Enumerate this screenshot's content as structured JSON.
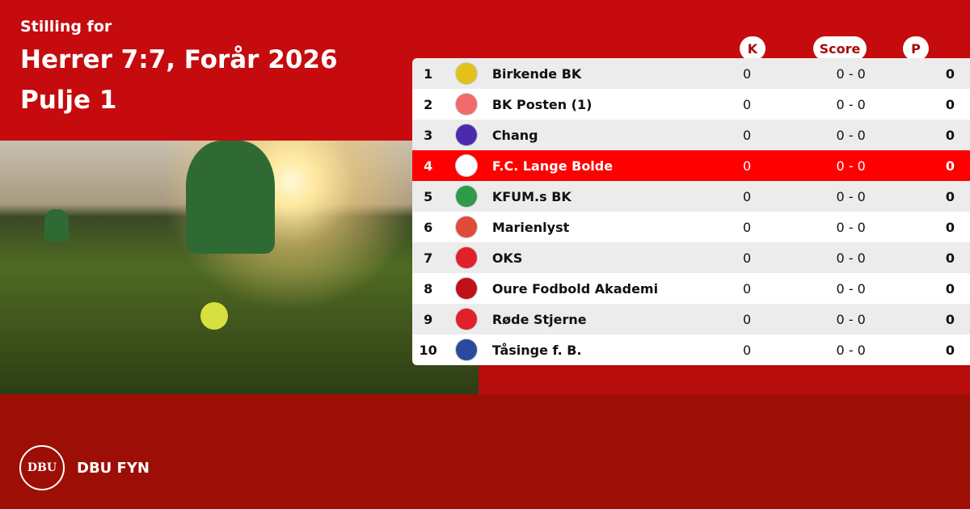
{
  "header": {
    "subtitle": "Stilling for",
    "title": "Herrer 7:7, Forår 2026",
    "pool": "Pulje 1"
  },
  "columns": {
    "k": "K",
    "score": "Score",
    "p": "P"
  },
  "colors": {
    "top": "#c50b0e",
    "bottom": "#9d0e06",
    "highlight": "#ff0000"
  },
  "rows": [
    {
      "pos": "1",
      "name": "Birkende BK",
      "k": "0",
      "score": "0 - 0",
      "p": "0",
      "logo_color": "#e2c21a"
    },
    {
      "pos": "2",
      "name": "BK Posten (1)",
      "k": "0",
      "score": "0 - 0",
      "p": "0",
      "logo_color": "#f26a6a"
    },
    {
      "pos": "3",
      "name": "Chang",
      "k": "0",
      "score": "0 - 0",
      "p": "0",
      "logo_color": "#4a2bb0"
    },
    {
      "pos": "4",
      "name": "F.C. Lange Bolde",
      "k": "0",
      "score": "0 - 0",
      "p": "0",
      "logo_color": "#ffffff",
      "highlight": true
    },
    {
      "pos": "5",
      "name": "KFUM.s BK",
      "k": "0",
      "score": "0 - 0",
      "p": "0",
      "logo_color": "#2e9a4a"
    },
    {
      "pos": "6",
      "name": "Marienlyst",
      "k": "0",
      "score": "0 - 0",
      "p": "0",
      "logo_color": "#e04a3a"
    },
    {
      "pos": "7",
      "name": "OKS",
      "k": "0",
      "score": "0 - 0",
      "p": "0",
      "logo_color": "#e0202a"
    },
    {
      "pos": "8",
      "name": "Oure Fodbold Akademi",
      "k": "0",
      "score": "0 - 0",
      "p": "0",
      "logo_color": "#c0101a"
    },
    {
      "pos": "9",
      "name": "Røde Stjerne",
      "k": "0",
      "score": "0 - 0",
      "p": "0",
      "logo_color": "#e0202a"
    },
    {
      "pos": "10",
      "name": "Tåsinge  f. B.",
      "k": "0",
      "score": "0 - 0",
      "p": "0",
      "logo_color": "#2a4aa0"
    }
  ],
  "footer": {
    "logo_text": "DBU",
    "org": "DBU FYN"
  }
}
